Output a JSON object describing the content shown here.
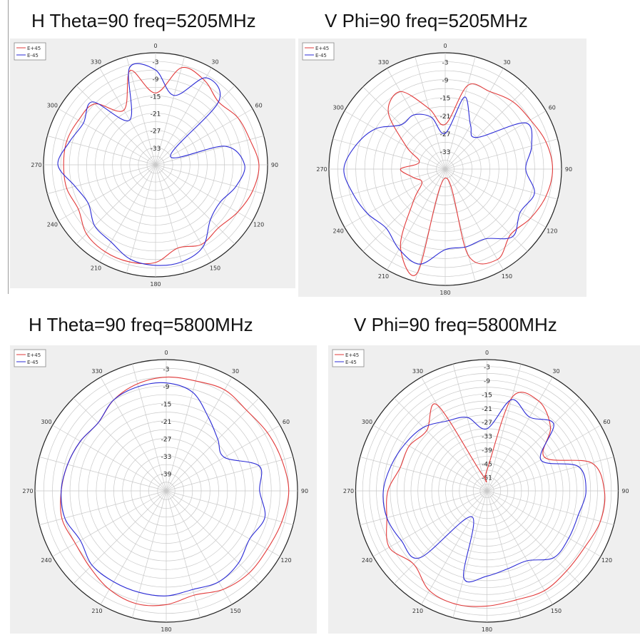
{
  "figure": {
    "colors": {
      "h45": "#e23a3a",
      "h_45": "#2b2bd6",
      "panel_bg": "#efefef",
      "grid": "#c9c9c9"
    }
  },
  "chart_data": [
    {
      "type": "polar-line",
      "title": "H Theta=90 freq=5205MHz",
      "angular_ticks": [
        "0",
        "30",
        "60",
        "90",
        "120",
        "150",
        "180",
        "210",
        "240",
        "270",
        "300",
        "330"
      ],
      "radial_ticks": [
        "-3",
        "-9",
        "-15",
        "-21",
        "-27",
        "-33"
      ],
      "rlim": [
        -39,
        0
      ],
      "legend": {
        "position": "top-left",
        "entries": [
          "E+45",
          "E-45"
        ]
      },
      "grid": true,
      "series": [
        {
          "name": "E+45",
          "angles": [
            0,
            15,
            30,
            45,
            60,
            75,
            90,
            105,
            120,
            135,
            150,
            165,
            180,
            195,
            210,
            225,
            240,
            255,
            270,
            285,
            300,
            315,
            330,
            345
          ],
          "values": [
            -14,
            -4,
            -5,
            -8,
            -6,
            -5,
            -3,
            -4,
            -6,
            -8,
            -7,
            -9,
            -5,
            -4,
            -4,
            -5,
            -8,
            -7,
            -7,
            -7,
            -8,
            -9,
            -17,
            -5
          ]
        },
        {
          "name": "E-45",
          "angles": [
            0,
            15,
            30,
            45,
            60,
            75,
            90,
            105,
            120,
            135,
            150,
            165,
            180,
            195,
            210,
            225,
            240,
            255,
            270,
            285,
            300,
            315,
            330,
            345
          ],
          "values": [
            -6,
            -14,
            -4,
            -8,
            -33,
            -14,
            -8,
            -10,
            -13,
            -12,
            -6,
            -4,
            -4,
            -5,
            -8,
            -9,
            -12,
            -10,
            -5,
            -8,
            -10,
            -8,
            -21,
            -4
          ]
        }
      ]
    },
    {
      "type": "polar-line",
      "title": "V Phi=90 freq=5205MHz",
      "angular_ticks": [
        "0",
        "30",
        "60",
        "90",
        "120",
        "150",
        "180",
        "210",
        "240",
        "270",
        "300",
        "330"
      ],
      "radial_ticks": [
        "-3",
        "-9",
        "-15",
        "-21",
        "-27",
        "-33"
      ],
      "rlim": [
        -39,
        0
      ],
      "legend": {
        "position": "top-left",
        "entries": [
          "E+45",
          "E-45"
        ]
      },
      "grid": true,
      "series": [
        {
          "name": "E+45",
          "angles": [
            0,
            15,
            30,
            45,
            60,
            75,
            90,
            105,
            120,
            135,
            150,
            165,
            180,
            195,
            210,
            225,
            240,
            255,
            270,
            285,
            300,
            315,
            330,
            345
          ],
          "values": [
            -24,
            -10,
            -9,
            -7,
            -6,
            -4,
            -3,
            -4,
            -6,
            -8,
            -4,
            -9,
            -36,
            -3,
            -9,
            -24,
            -30,
            -28,
            -24,
            -30,
            -24,
            -12,
            -9,
            -18
          ]
        },
        {
          "name": "E-45",
          "angles": [
            0,
            15,
            30,
            45,
            60,
            75,
            90,
            105,
            120,
            135,
            150,
            165,
            180,
            195,
            210,
            225,
            240,
            255,
            270,
            285,
            300,
            315,
            330,
            345
          ],
          "values": [
            -27,
            -14,
            -22,
            -24,
            -8,
            -9,
            -12,
            -8,
            -10,
            -7,
            -12,
            -12,
            -12,
            -6,
            -8,
            -11,
            -9,
            -7,
            -5,
            -8,
            -12,
            -18,
            -18,
            -21
          ]
        }
      ]
    },
    {
      "type": "polar-line",
      "title": "H Theta=90 freq=5800MHz",
      "angular_ticks": [
        "0",
        "30",
        "60",
        "90",
        "120",
        "150",
        "180",
        "210",
        "240",
        "270",
        "300",
        "330"
      ],
      "radial_ticks": [
        "-3",
        "-9",
        "-15",
        "-21",
        "-27",
        "-33",
        "-39"
      ],
      "rlim": [
        -45,
        0
      ],
      "legend": {
        "position": "top-left",
        "entries": [
          "E+45",
          "E-45"
        ]
      },
      "grid": true,
      "series": [
        {
          "name": "E+45",
          "angles": [
            0,
            15,
            30,
            45,
            60,
            75,
            90,
            105,
            120,
            135,
            150,
            165,
            180,
            195,
            210,
            225,
            240,
            255,
            270,
            285,
            300,
            315,
            330,
            345
          ],
          "values": [
            -6,
            -6,
            -5,
            -6,
            -5,
            -4,
            -3,
            -4,
            -5,
            -5,
            -6,
            -8,
            -6,
            -5,
            -6,
            -8,
            -9,
            -8,
            -9,
            -10,
            -11,
            -12,
            -9,
            -7
          ]
        },
        {
          "name": "E-45",
          "angles": [
            0,
            15,
            30,
            45,
            60,
            75,
            90,
            105,
            120,
            135,
            150,
            165,
            180,
            195,
            210,
            225,
            240,
            255,
            270,
            285,
            300,
            315,
            330,
            345
          ],
          "values": [
            -8,
            -10,
            -16,
            -20,
            -22,
            -12,
            -13,
            -10,
            -12,
            -10,
            -9,
            -10,
            -9,
            -9,
            -9,
            -9,
            -11,
            -9,
            -9,
            -10,
            -11,
            -12,
            -9,
            -8
          ]
        }
      ]
    },
    {
      "type": "polar-line",
      "title": "V Phi=90 freq=5800MHz",
      "angular_ticks": [
        "0",
        "30",
        "60",
        "90",
        "120",
        "150",
        "180",
        "210",
        "240",
        "270",
        "300",
        "330"
      ],
      "radial_ticks": [
        "-3",
        "-9",
        "-15",
        "-21",
        "-27",
        "-33",
        "-39",
        "-45",
        "-51"
      ],
      "rlim": [
        -57,
        0
      ],
      "legend": {
        "position": "top-left",
        "entries": [
          "E+45",
          "E-45"
        ]
      },
      "grid": true,
      "series": [
        {
          "name": "E+45",
          "angles": [
            0,
            15,
            30,
            45,
            60,
            75,
            90,
            105,
            120,
            135,
            150,
            165,
            180,
            195,
            210,
            225,
            240,
            255,
            270,
            285,
            300,
            315,
            330,
            345
          ],
          "values": [
            -48,
            -15,
            -12,
            -18,
            -28,
            -10,
            -6,
            -6,
            -8,
            -8,
            -7,
            -8,
            -7,
            -6,
            -7,
            -12,
            -8,
            -12,
            -14,
            -18,
            -18,
            -20,
            -14,
            -50
          ]
        },
        {
          "name": "E-45",
          "angles": [
            0,
            15,
            30,
            45,
            60,
            75,
            90,
            105,
            120,
            135,
            150,
            165,
            180,
            195,
            210,
            225,
            240,
            255,
            270,
            285,
            300,
            315,
            330,
            345
          ],
          "values": [
            -30,
            -16,
            -20,
            -16,
            -30,
            -16,
            -14,
            -16,
            -16,
            -16,
            -22,
            -22,
            -20,
            -18,
            -44,
            -16,
            -14,
            -12,
            -12,
            -14,
            -16,
            -18,
            -22,
            -24
          ]
        }
      ]
    }
  ]
}
